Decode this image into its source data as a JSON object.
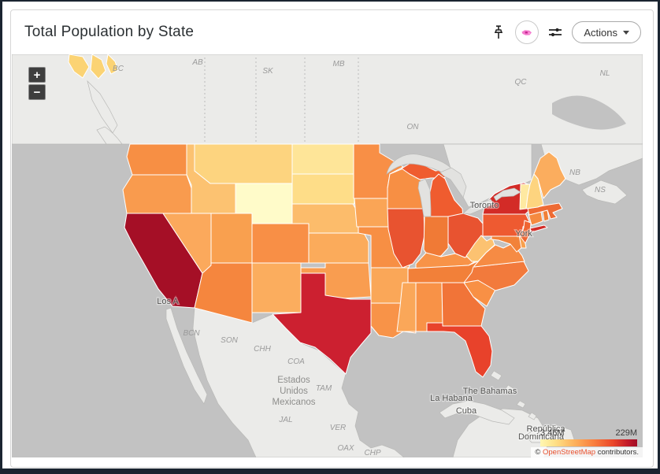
{
  "header": {
    "title": "Total Population by State",
    "actions_label": "Actions"
  },
  "toolbar": {
    "icons": [
      "pin-icon",
      "choropleth-visualization-icon",
      "format-icon"
    ]
  },
  "map": {
    "controls": {
      "zoom_in": "+",
      "zoom_out": "−"
    },
    "legend": {
      "min": "3.46M",
      "max": "229M"
    },
    "attribution": {
      "copyright": "© ",
      "link_text": "OpenStreetMap",
      "suffix": " contributors."
    },
    "colors": {
      "ocean": "#c2c2c2",
      "other_land": "#ebebe9",
      "lake": "#e2e2e0",
      "state_border": "#ffffff",
      "link": "#e8512e"
    },
    "region_labels": [
      {
        "id": "bc",
        "text": "BC"
      },
      {
        "id": "ab",
        "text": "AB"
      },
      {
        "id": "sk",
        "text": "SK"
      },
      {
        "id": "mb",
        "text": "MB"
      },
      {
        "id": "on",
        "text": "ON"
      },
      {
        "id": "qc",
        "text": "QC"
      },
      {
        "id": "nl",
        "text": "NL"
      },
      {
        "id": "nb",
        "text": "NB"
      },
      {
        "id": "ns",
        "text": "NS"
      },
      {
        "id": "bcn",
        "text": "BCN"
      },
      {
        "id": "son",
        "text": "SON"
      },
      {
        "id": "chh",
        "text": "CHH"
      },
      {
        "id": "coa",
        "text": "COA"
      },
      {
        "id": "tam",
        "text": "TAM"
      },
      {
        "id": "jal",
        "text": "JAL"
      },
      {
        "id": "ver",
        "text": "VER"
      },
      {
        "id": "oax",
        "text": "OAX"
      },
      {
        "id": "chp",
        "text": "CHP"
      }
    ],
    "city_labels": [
      {
        "id": "toronto",
        "text": "Toronto"
      },
      {
        "id": "york",
        "text": "York"
      },
      {
        "id": "losangeles",
        "text": "Los A"
      },
      {
        "id": "bahamas",
        "text": "The Bahamas"
      },
      {
        "id": "lahabana",
        "text": "La Habana"
      },
      {
        "id": "cuba",
        "text": "Cuba"
      },
      {
        "id": "repdom1",
        "text": "República"
      },
      {
        "id": "repdom2",
        "text": "Dominicana"
      }
    ],
    "country_label": {
      "lines": [
        "Estados",
        "Unidos",
        "Mexicanos"
      ]
    },
    "states": [
      {
        "id": "AK",
        "color": "#fbd374"
      },
      {
        "id": "WA",
        "color": "#f78f44"
      },
      {
        "id": "OR",
        "color": "#f99b4e"
      },
      {
        "id": "CA",
        "color": "#a50f26"
      },
      {
        "id": "NV",
        "color": "#fba95c"
      },
      {
        "id": "ID",
        "color": "#fcc271"
      },
      {
        "id": "MT",
        "color": "#fdd47f"
      },
      {
        "id": "WY",
        "color": "#fffbc9"
      },
      {
        "id": "UT",
        "color": "#f9a04f"
      },
      {
        "id": "CO",
        "color": "#f88f46"
      },
      {
        "id": "AZ",
        "color": "#f5863e"
      },
      {
        "id": "NM",
        "color": "#fbad5e"
      },
      {
        "id": "ND",
        "color": "#fee598"
      },
      {
        "id": "SD",
        "color": "#fedd88"
      },
      {
        "id": "NE",
        "color": "#fcbc6b"
      },
      {
        "id": "KS",
        "color": "#fbab5b"
      },
      {
        "id": "OK",
        "color": "#f99d50"
      },
      {
        "id": "TX",
        "color": "#cc2030"
      },
      {
        "id": "MN",
        "color": "#f88f46"
      },
      {
        "id": "IA",
        "color": "#faa556"
      },
      {
        "id": "MO",
        "color": "#f78f44"
      },
      {
        "id": "AR",
        "color": "#faa758"
      },
      {
        "id": "LA",
        "color": "#f89348"
      },
      {
        "id": "WI",
        "color": "#f78f44"
      },
      {
        "id": "IL",
        "color": "#e85330"
      },
      {
        "id": "MIUP",
        "color": "#ef5c2f"
      },
      {
        "id": "MI",
        "color": "#ef5c2f"
      },
      {
        "id": "IN",
        "color": "#f07a36"
      },
      {
        "id": "OH",
        "color": "#e85330"
      },
      {
        "id": "KY",
        "color": "#f89348"
      },
      {
        "id": "TN",
        "color": "#f28039"
      },
      {
        "id": "MS",
        "color": "#faa759"
      },
      {
        "id": "AL",
        "color": "#f89247"
      },
      {
        "id": "GA",
        "color": "#f17438"
      },
      {
        "id": "FL",
        "color": "#e8422b"
      },
      {
        "id": "SC",
        "color": "#f89045"
      },
      {
        "id": "NC",
        "color": "#f27a3c"
      },
      {
        "id": "VA",
        "color": "#f68b44"
      },
      {
        "id": "WV",
        "color": "#fcc271"
      },
      {
        "id": "MD",
        "color": "#f28239"
      },
      {
        "id": "DE",
        "color": "#f8a04e"
      },
      {
        "id": "PA",
        "color": "#ee5a31"
      },
      {
        "id": "NJ",
        "color": "#ef6532"
      },
      {
        "id": "NY",
        "color": "#d32b27"
      },
      {
        "id": "NYLI",
        "color": "#d32b27"
      },
      {
        "id": "CT",
        "color": "#f58a40"
      },
      {
        "id": "RI",
        "color": "#f08038"
      },
      {
        "id": "MA",
        "color": "#ee6a33"
      },
      {
        "id": "VT",
        "color": "#fee9a1"
      },
      {
        "id": "NH",
        "color": "#fdd47f"
      },
      {
        "id": "ME",
        "color": "#fbad5e"
      }
    ]
  }
}
